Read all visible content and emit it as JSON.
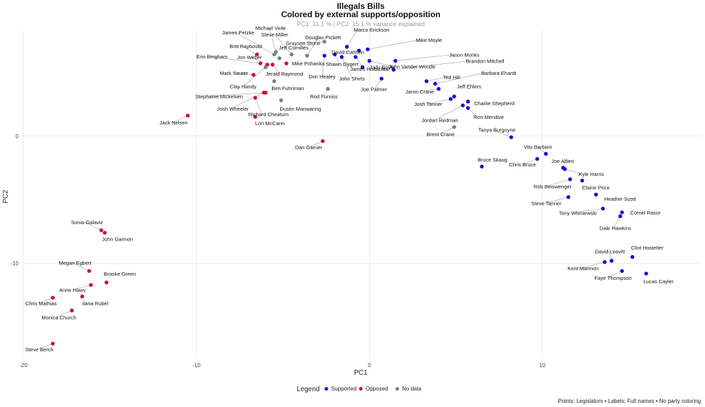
{
  "chart_data": {
    "type": "scatter",
    "title": "Illegals Bills",
    "subtitle": "Colored by external supports/opposition",
    "subtitle2": "PC1: 31.1 % | PC2: 15.1 % variance explained",
    "xlabel": "PC1",
    "ylabel": "PC2",
    "xlim": [
      -20,
      19.2
    ],
    "ylim": [
      -17.5,
      8.3
    ],
    "xticks": [
      -20,
      -10,
      0,
      10
    ],
    "yticks": [
      0,
      -10
    ],
    "grid": true,
    "legend_position": "bottom",
    "legend_title": "Legend",
    "caption": "Points: Legislators • Labels: Full names • No party coloring",
    "series": [
      {
        "name": "Supported",
        "color": "#1a0fd6"
      },
      {
        "name": "Opposed",
        "color": "#d3112b"
      },
      {
        "name": "No data",
        "color": "#7f7f7f"
      }
    ],
    "points": [
      {
        "name": "Steve Berch",
        "x": -18.3,
        "y": -16.3,
        "group": "Opposed"
      },
      {
        "name": "Monica Church",
        "x": -17.2,
        "y": -13.7,
        "group": "Opposed"
      },
      {
        "name": "Chris Mathias",
        "x": -18.3,
        "y": -12.7,
        "group": "Opposed"
      },
      {
        "name": "Ilana Rubel",
        "x": -16.6,
        "y": -12.6,
        "group": "Opposed"
      },
      {
        "name": "Anne Haws",
        "x": -16.1,
        "y": -11.7,
        "group": "Opposed"
      },
      {
        "name": "Brooke Green",
        "x": -15.2,
        "y": -11.5,
        "group": "Opposed"
      },
      {
        "name": "Megan Egbert",
        "x": -16.2,
        "y": -10.6,
        "group": "Opposed"
      },
      {
        "name": "John Gannon",
        "x": -15.3,
        "y": -7.6,
        "group": "Opposed"
      },
      {
        "name": "Sonia Galaviz",
        "x": -15.5,
        "y": -7.4,
        "group": "Opposed"
      },
      {
        "name": "Jack Nelsen",
        "x": -10.5,
        "y": 1.6,
        "group": "Opposed"
      },
      {
        "name": "Dan Garner",
        "x": -2.7,
        "y": -0.4,
        "group": "Opposed"
      },
      {
        "name": "Lori McCann",
        "x": -6.6,
        "y": 1.5,
        "group": "Opposed"
      },
      {
        "name": "Richard Cheatum",
        "x": -6.6,
        "y": 3.0,
        "group": "Opposed"
      },
      {
        "name": "Josh Wheeler",
        "x": -6.1,
        "y": 3.4,
        "group": "Opposed"
      },
      {
        "name": "Stephanie Mickelsen",
        "x": -6.0,
        "y": 3.4,
        "group": "Opposed"
      },
      {
        "name": "Mark Sauter",
        "x": -6.7,
        "y": 4.8,
        "group": "Opposed"
      },
      {
        "name": "Erin Bingham",
        "x": -6.3,
        "y": 5.7,
        "group": "Opposed"
      },
      {
        "name": "Jon Weber",
        "x": -5.9,
        "y": 5.6,
        "group": "Opposed"
      },
      {
        "name": "Jerald Raymond",
        "x": -5.6,
        "y": 5.6,
        "group": "Opposed"
      },
      {
        "name": "Britt Raybould",
        "x": -6.5,
        "y": 6.4,
        "group": "Opposed"
      },
      {
        "name": "Mike Pohanka",
        "x": -4.8,
        "y": 5.7,
        "group": "Opposed"
      },
      {
        "name": "Clay Handy",
        "x": -6.0,
        "y": 5.4,
        "group": "No data"
      },
      {
        "name": "Ben Fuhriman",
        "x": -5.5,
        "y": 4.3,
        "group": "No data"
      },
      {
        "name": "Dustin Manwaring",
        "x": -5.1,
        "y": 2.8,
        "group": "No data"
      },
      {
        "name": "James Petzke",
        "x": -5.5,
        "y": 6.4,
        "group": "No data"
      },
      {
        "name": "Michael Veile",
        "x": -5.4,
        "y": 6.6,
        "group": "No data"
      },
      {
        "name": "Jeff Cornilles",
        "x": -5.2,
        "y": 6.1,
        "group": "No data"
      },
      {
        "name": "Steve Miller",
        "x": -4.5,
        "y": 6.4,
        "group": "No data"
      },
      {
        "name": "Douglas Pickett",
        "x": -3.6,
        "y": 6.3,
        "group": "No data"
      },
      {
        "name": "Grayson Stone",
        "x": -2.6,
        "y": 7.4,
        "group": "No data"
      },
      {
        "name": "Rod Furniss",
        "x": -2.4,
        "y": 3.7,
        "group": "No data"
      },
      {
        "name": "Brent Crane",
        "x": 4.9,
        "y": 0.7,
        "group": "No data"
      },
      {
        "name": "Dori Healey",
        "x": -2.6,
        "y": 6.3,
        "group": "Supported"
      },
      {
        "name": "Marco Erickson",
        "x": -1.3,
        "y": 7.0,
        "group": "Supported"
      },
      {
        "name": "Shawn Dygert",
        "x": -2.0,
        "y": 6.4,
        "group": "Supported"
      },
      {
        "name": "John Shirts",
        "x": -1.6,
        "y": 6.2,
        "group": "Supported"
      },
      {
        "name": "David Cannon",
        "x": -0.6,
        "y": 6.7,
        "group": "Supported"
      },
      {
        "name": "Mike Moyle",
        "x": -0.1,
        "y": 6.8,
        "group": "Supported"
      },
      {
        "name": "James Holtzclaw",
        "x": -0.8,
        "y": 6.2,
        "group": "Supported"
      },
      {
        "name": "John Vander Woude",
        "x": 0.0,
        "y": 5.9,
        "group": "Supported"
      },
      {
        "name": "Jason Monks",
        "x": 1.5,
        "y": 5.9,
        "group": "Supported"
      },
      {
        "name": "Brandon Mitchell",
        "x": 1.4,
        "y": 5.2,
        "group": "Supported"
      },
      {
        "name": "Judy Boyle",
        "x": -0.4,
        "y": 5.4,
        "group": "Supported"
      },
      {
        "name": "Joe Palmer",
        "x": 0.7,
        "y": 4.5,
        "group": "Supported"
      },
      {
        "name": "Ted Hill",
        "x": 3.3,
        "y": 4.3,
        "group": "Supported"
      },
      {
        "name": "Barbara Ehardt",
        "x": 3.8,
        "y": 4.1,
        "group": "Supported"
      },
      {
        "name": "Jaron Crane",
        "x": 4.0,
        "y": 3.7,
        "group": "Supported"
      },
      {
        "name": "Jeff Ehlers",
        "x": 4.9,
        "y": 3.1,
        "group": "Supported"
      },
      {
        "name": "Josh Tanner",
        "x": 4.7,
        "y": 2.9,
        "group": "Supported"
      },
      {
        "name": "Charlie Shepherd",
        "x": 5.7,
        "y": 2.7,
        "group": "Supported"
      },
      {
        "name": "Jordan Redman",
        "x": 5.4,
        "y": 2.4,
        "group": "Supported"
      },
      {
        "name": "Ron Mendive",
        "x": 5.7,
        "y": 2.2,
        "group": "Supported"
      },
      {
        "name": "Tanya Burgoyne",
        "x": 8.2,
        "y": -0.1,
        "group": "Supported"
      },
      {
        "name": "Vito Barbieri",
        "x": 10.2,
        "y": -1.4,
        "group": "Supported"
      },
      {
        "name": "Bruce Skaug",
        "x": 6.5,
        "y": -2.4,
        "group": "Supported"
      },
      {
        "name": "Chris Bruce",
        "x": 9.7,
        "y": -1.8,
        "group": "Supported"
      },
      {
        "name": "Joe Alfieri",
        "x": 11.2,
        "y": -2.5,
        "group": "Supported"
      },
      {
        "name": "Kyle Harris",
        "x": 11.3,
        "y": -2.6,
        "group": "Supported"
      },
      {
        "name": "Rob Beiswenger",
        "x": 11.6,
        "y": -3.4,
        "group": "Supported"
      },
      {
        "name": "Elaine Price",
        "x": 12.3,
        "y": -3.5,
        "group": "Supported"
      },
      {
        "name": "Steve Tanner",
        "x": 11.5,
        "y": -4.8,
        "group": "Supported"
      },
      {
        "name": "Heather Scott",
        "x": 13.1,
        "y": -4.6,
        "group": "Supported"
      },
      {
        "name": "Tony Wisniewski",
        "x": 13.5,
        "y": -5.7,
        "group": "Supported"
      },
      {
        "name": "Cornel Rasor",
        "x": 14.6,
        "y": -6.0,
        "group": "Supported"
      },
      {
        "name": "Dale Hawkins",
        "x": 14.5,
        "y": -6.3,
        "group": "Supported"
      },
      {
        "name": "David Leavitt",
        "x": 14.0,
        "y": -9.8,
        "group": "Supported"
      },
      {
        "name": "Clint Hostetler",
        "x": 15.2,
        "y": -9.5,
        "group": "Supported"
      },
      {
        "name": "Kent Marmon",
        "x": 13.6,
        "y": -9.9,
        "group": "Supported"
      },
      {
        "name": "Faye Thompson",
        "x": 14.6,
        "y": -10.6,
        "group": "Supported"
      },
      {
        "name": "Lucas Cayler",
        "x": 16.0,
        "y": -10.8,
        "group": "Supported"
      }
    ]
  }
}
